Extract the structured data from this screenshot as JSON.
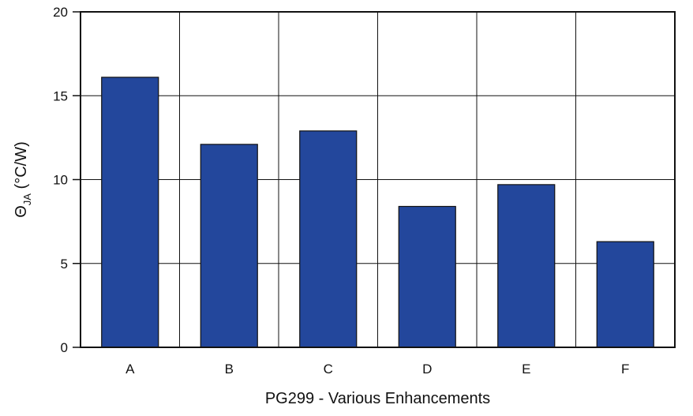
{
  "chart_data": {
    "type": "bar",
    "categories": [
      "A",
      "B",
      "C",
      "D",
      "E",
      "F"
    ],
    "values": [
      16.1,
      12.1,
      12.9,
      8.4,
      9.7,
      6.3
    ],
    "xlabel": "PG299 - Various Enhancements",
    "ylabel": {
      "symbol": "Θ",
      "subscript": "JA",
      "unit": " (°C/W)"
    },
    "ylim": [
      0,
      20
    ],
    "yticks": [
      0,
      5,
      10,
      15,
      20
    ],
    "grid": true,
    "bar_color": "#23479c",
    "bar_edge_color": "#111111"
  }
}
